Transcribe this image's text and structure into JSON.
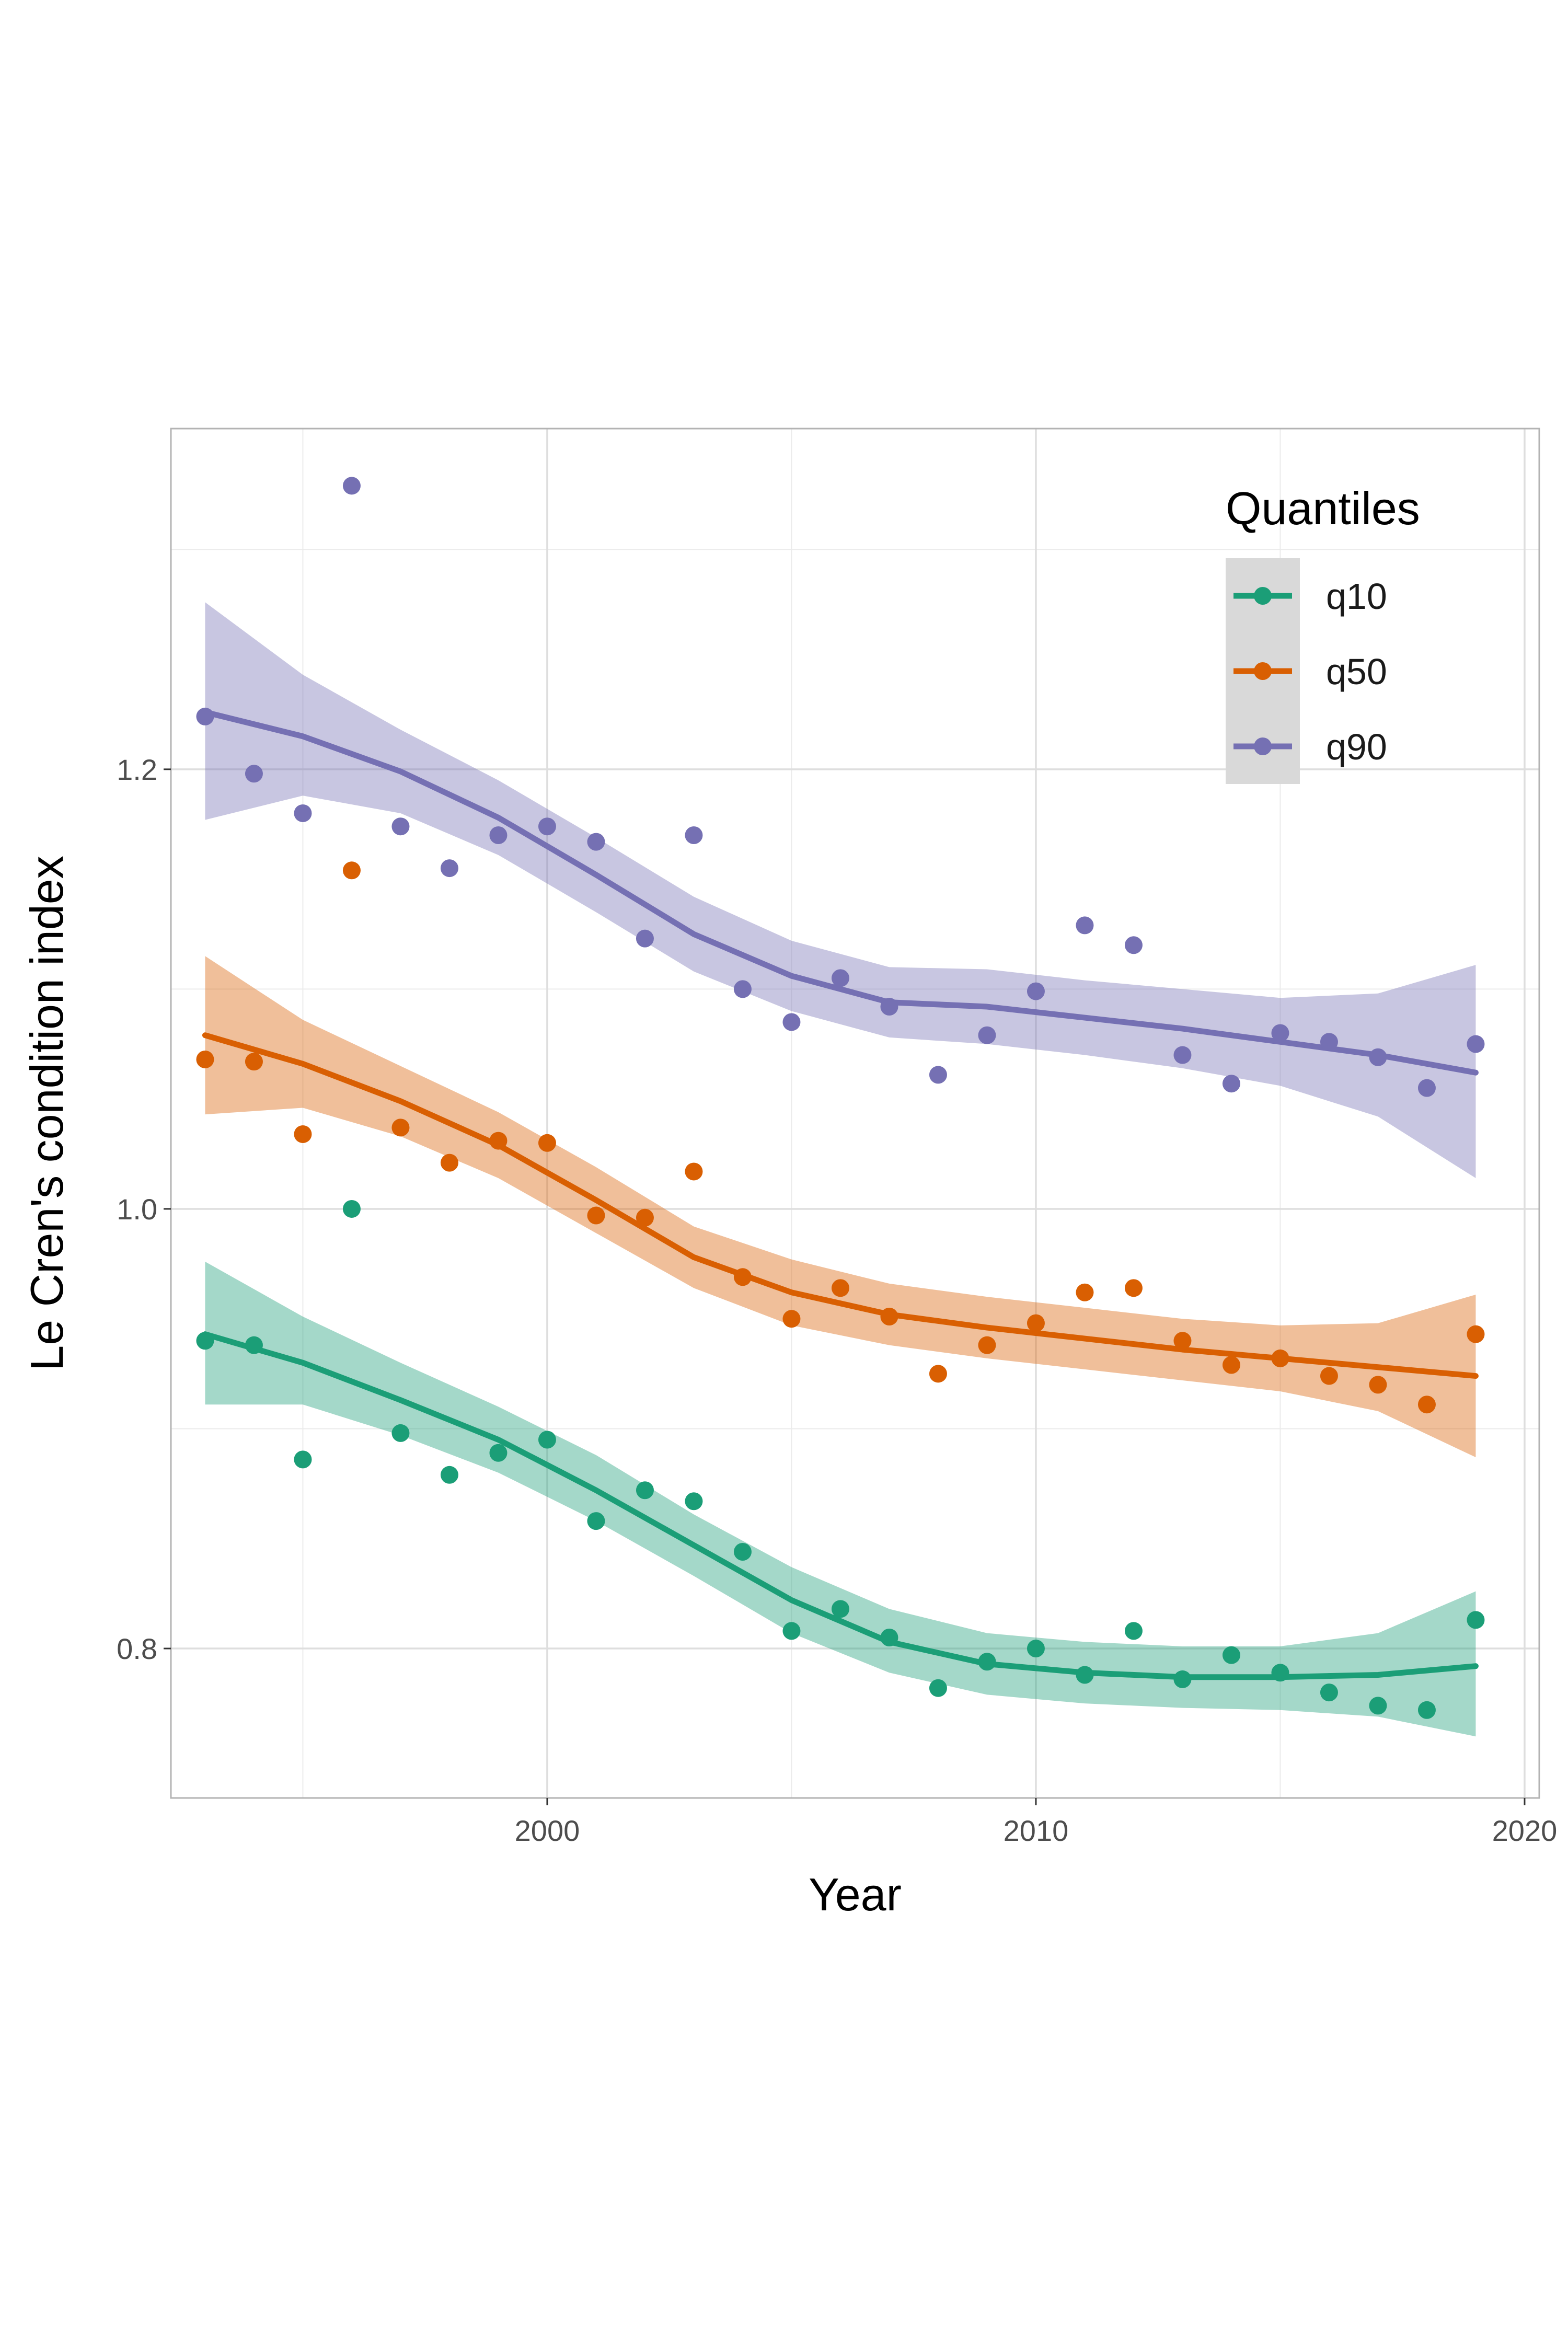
{
  "chart_data": {
    "type": "scatter",
    "xlabel": "Year",
    "ylabel": "Le Cren's condition index",
    "xlim": [
      1992.3,
      2020.3
    ],
    "ylim": [
      0.732,
      1.355
    ],
    "x_ticks": [
      2000,
      2010,
      2020
    ],
    "y_ticks": [
      0.8,
      1.0,
      1.2
    ],
    "x_minor_ticks": [
      1995,
      2005,
      2015
    ],
    "y_minor_ticks": [
      0.9,
      1.1,
      1.3
    ],
    "x_tick_labels": [
      "2000",
      "2010",
      "2020"
    ],
    "y_tick_labels": [
      "0.8",
      "1.0",
      "1.2"
    ],
    "grid": true,
    "legend": {
      "title": "Quantiles",
      "position": "top-right"
    },
    "series": [
      {
        "name": "q10",
        "color": "#1b9e77",
        "points": [
          [
            1993,
            0.94
          ],
          [
            1994,
            0.938
          ],
          [
            1995,
            0.886
          ],
          [
            1996,
            1.0
          ],
          [
            1997,
            0.898
          ],
          [
            1998,
            0.879
          ],
          [
            1999,
            0.889
          ],
          [
            2000,
            0.895
          ],
          [
            2001,
            0.858
          ],
          [
            2002,
            0.872
          ],
          [
            2003,
            0.867
          ],
          [
            2004,
            0.844
          ],
          [
            2005,
            0.808
          ],
          [
            2006,
            0.818
          ],
          [
            2007,
            0.805
          ],
          [
            2008,
            0.782
          ],
          [
            2009,
            0.794
          ],
          [
            2010,
            0.8
          ],
          [
            2011,
            0.788
          ],
          [
            2012,
            0.808
          ],
          [
            2013,
            0.786
          ],
          [
            2014,
            0.797
          ],
          [
            2015,
            0.789
          ],
          [
            2016,
            0.78
          ],
          [
            2017,
            0.774
          ],
          [
            2018,
            0.772
          ],
          [
            2019,
            0.813
          ]
        ],
        "fit": [
          [
            1993,
            0.943
          ],
          [
            1995,
            0.93
          ],
          [
            1997,
            0.913
          ],
          [
            1999,
            0.895
          ],
          [
            2001,
            0.872
          ],
          [
            2003,
            0.847
          ],
          [
            2005,
            0.822
          ],
          [
            2007,
            0.803
          ],
          [
            2009,
            0.793
          ],
          [
            2011,
            0.789
          ],
          [
            2013,
            0.787
          ],
          [
            2015,
            0.787
          ],
          [
            2017,
            0.788
          ],
          [
            2019,
            0.792
          ]
        ],
        "band": [
          [
            1993,
            0.911,
            0.976
          ],
          [
            1995,
            0.911,
            0.951
          ],
          [
            1997,
            0.897,
            0.93
          ],
          [
            1999,
            0.88,
            0.91
          ],
          [
            2001,
            0.858,
            0.888
          ],
          [
            2003,
            0.833,
            0.861
          ],
          [
            2005,
            0.807,
            0.837
          ],
          [
            2007,
            0.789,
            0.818
          ],
          [
            2009,
            0.779,
            0.807
          ],
          [
            2011,
            0.775,
            0.803
          ],
          [
            2013,
            0.773,
            0.801
          ],
          [
            2015,
            0.772,
            0.801
          ],
          [
            2017,
            0.769,
            0.807
          ],
          [
            2019,
            0.76,
            0.826
          ]
        ]
      },
      {
        "name": "q50",
        "color": "#d95f02",
        "points": [
          [
            1993,
            1.068
          ],
          [
            1994,
            1.067
          ],
          [
            1995,
            1.034
          ],
          [
            1996,
            1.154
          ],
          [
            1997,
            1.037
          ],
          [
            1998,
            1.021
          ],
          [
            1999,
            1.031
          ],
          [
            2000,
            1.03
          ],
          [
            2001,
            0.997
          ],
          [
            2002,
            0.996
          ],
          [
            2003,
            1.017
          ],
          [
            2004,
            0.969
          ],
          [
            2005,
            0.95
          ],
          [
            2006,
            0.964
          ],
          [
            2007,
            0.951
          ],
          [
            2008,
            0.925
          ],
          [
            2009,
            0.938
          ],
          [
            2010,
            0.948
          ],
          [
            2011,
            0.962
          ],
          [
            2012,
            0.964
          ],
          [
            2013,
            0.94
          ],
          [
            2014,
            0.929
          ],
          [
            2015,
            0.932
          ],
          [
            2016,
            0.924
          ],
          [
            2017,
            0.92
          ],
          [
            2018,
            0.911
          ],
          [
            2019,
            0.943
          ]
        ],
        "fit": [
          [
            1993,
            1.079
          ],
          [
            1995,
            1.066
          ],
          [
            1997,
            1.049
          ],
          [
            1999,
            1.029
          ],
          [
            2001,
            1.004
          ],
          [
            2003,
            0.978
          ],
          [
            2005,
            0.962
          ],
          [
            2007,
            0.952
          ],
          [
            2009,
            0.946
          ],
          [
            2011,
            0.941
          ],
          [
            2013,
            0.936
          ],
          [
            2015,
            0.932
          ],
          [
            2017,
            0.928
          ],
          [
            2019,
            0.924
          ]
        ],
        "band": [
          [
            1993,
            1.043,
            1.115
          ],
          [
            1995,
            1.046,
            1.086
          ],
          [
            1997,
            1.033,
            1.065
          ],
          [
            1999,
            1.014,
            1.044
          ],
          [
            2001,
            0.989,
            1.019
          ],
          [
            2003,
            0.964,
            0.992
          ],
          [
            2005,
            0.947,
            0.977
          ],
          [
            2007,
            0.938,
            0.966
          ],
          [
            2009,
            0.932,
            0.96
          ],
          [
            2011,
            0.927,
            0.955
          ],
          [
            2013,
            0.922,
            0.95
          ],
          [
            2015,
            0.917,
            0.947
          ],
          [
            2017,
            0.908,
            0.948
          ],
          [
            2019,
            0.887,
            0.961
          ]
        ]
      },
      {
        "name": "q90",
        "color": "#7570b3",
        "points": [
          [
            1993,
            1.224
          ],
          [
            1994,
            1.198
          ],
          [
            1995,
            1.18
          ],
          [
            1996,
            1.329
          ],
          [
            1997,
            1.174
          ],
          [
            1998,
            1.155
          ],
          [
            1999,
            1.17
          ],
          [
            2000,
            1.174
          ],
          [
            2001,
            1.167
          ],
          [
            2002,
            1.123
          ],
          [
            2003,
            1.17
          ],
          [
            2004,
            1.1
          ],
          [
            2005,
            1.085
          ],
          [
            2006,
            1.105
          ],
          [
            2007,
            1.092
          ],
          [
            2008,
            1.061
          ],
          [
            2009,
            1.079
          ],
          [
            2010,
            1.099
          ],
          [
            2011,
            1.129
          ],
          [
            2012,
            1.12
          ],
          [
            2013,
            1.07
          ],
          [
            2014,
            1.057
          ],
          [
            2015,
            1.08
          ],
          [
            2016,
            1.076
          ],
          [
            2017,
            1.069
          ],
          [
            2018,
            1.055
          ],
          [
            2019,
            1.075
          ]
        ],
        "fit": [
          [
            1993,
            1.226
          ],
          [
            1995,
            1.215
          ],
          [
            1997,
            1.199
          ],
          [
            1999,
            1.178
          ],
          [
            2001,
            1.152
          ],
          [
            2003,
            1.125
          ],
          [
            2005,
            1.106
          ],
          [
            2007,
            1.094
          ],
          [
            2009,
            1.092
          ],
          [
            2011,
            1.087
          ],
          [
            2013,
            1.082
          ],
          [
            2015,
            1.076
          ],
          [
            2017,
            1.07
          ],
          [
            2019,
            1.062
          ]
        ],
        "band": [
          [
            1993,
            1.177,
            1.276
          ],
          [
            1995,
            1.188,
            1.243
          ],
          [
            1997,
            1.18,
            1.218
          ],
          [
            1999,
            1.161,
            1.195
          ],
          [
            2001,
            1.135,
            1.169
          ],
          [
            2003,
            1.108,
            1.142
          ],
          [
            2005,
            1.09,
            1.122
          ],
          [
            2007,
            1.078,
            1.11
          ],
          [
            2009,
            1.075,
            1.109
          ],
          [
            2011,
            1.07,
            1.104
          ],
          [
            2013,
            1.064,
            1.1
          ],
          [
            2015,
            1.056,
            1.096
          ],
          [
            2017,
            1.042,
            1.098
          ],
          [
            2019,
            1.014,
            1.111
          ]
        ]
      }
    ]
  }
}
